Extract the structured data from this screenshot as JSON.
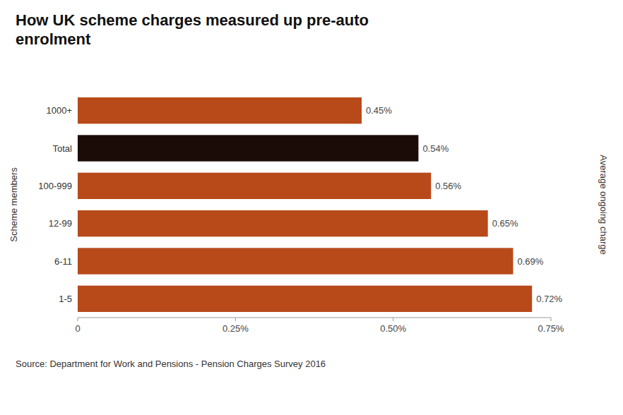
{
  "chart_data": {
    "type": "bar",
    "orientation": "horizontal",
    "title": "How UK scheme charges measured up pre-auto\nenrolment",
    "categories": [
      "1-5",
      "6-11",
      "12-99",
      "100-999",
      "Total",
      "1000+"
    ],
    "values": [
      0.0072,
      0.0069,
      0.0065,
      0.0056,
      0.0054,
      0.0045
    ],
    "value_labels": [
      "0.72%",
      "0.69%",
      "0.65%",
      "0.56%",
      "0.54%",
      "0.45%"
    ],
    "colors": [
      "#b84a1a",
      "#b84a1a",
      "#b84a1a",
      "#b84a1a",
      "#1c0c08",
      "#b84a1a"
    ],
    "data_labels": true,
    "xlabel": "Average ongoing charge",
    "ylabel": "Scheme members",
    "xlim": [
      0,
      0.0075
    ],
    "xticks": [
      0,
      {
        "value": 0.0025,
        "label": "0.25%"
      },
      {
        "value": 0.005,
        "label": "0.50%"
      },
      {
        "value": 0.0075,
        "label": "0.75%"
      }
    ],
    "source": "Source: Department for Work and Pensions - Pension Charges Survey 2016",
    "grid": false
  }
}
